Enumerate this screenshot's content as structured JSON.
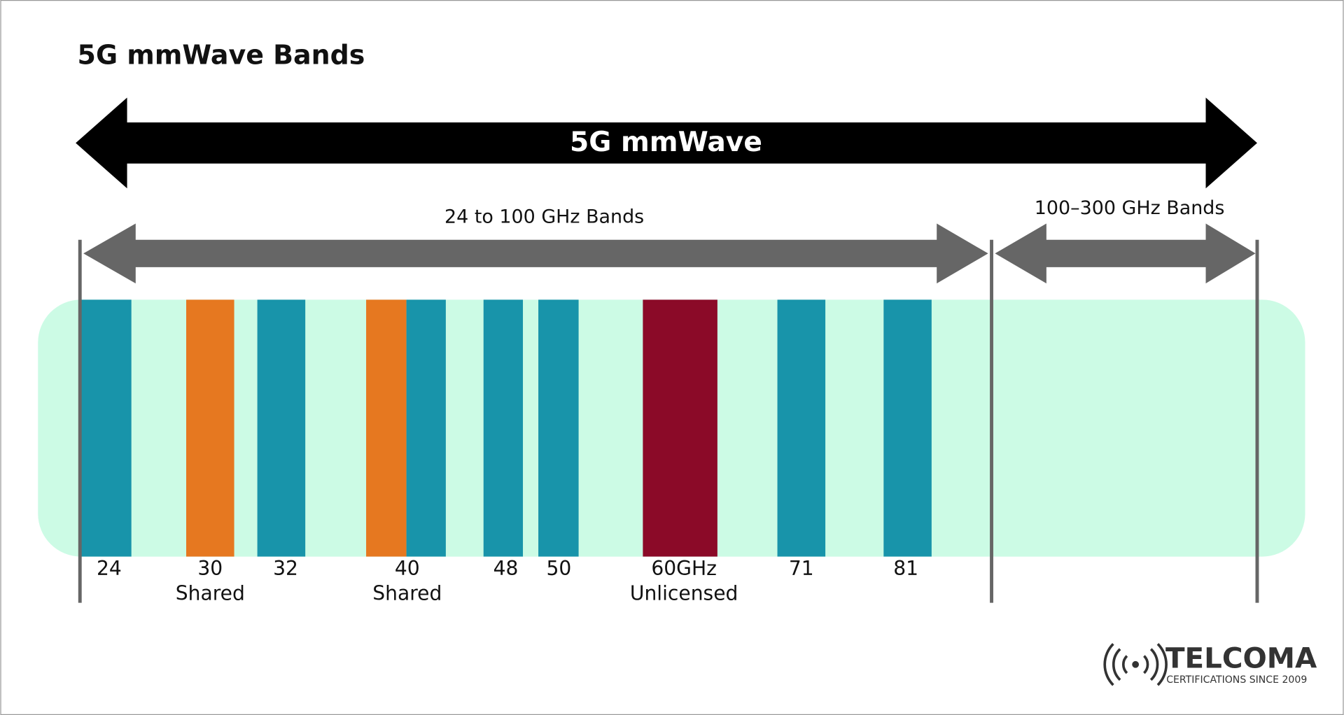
{
  "title": "5G mmWave Bands",
  "span": {
    "label": "5G mmWave"
  },
  "ranges": [
    {
      "label": "24 to 100 GHz Bands"
    },
    {
      "label": "100–300 GHz Bands"
    }
  ],
  "bands": [
    {
      "label": "24"
    },
    {
      "label": "30",
      "note": "Shared"
    },
    {
      "label": "32"
    },
    {
      "label": "40",
      "note": "Shared"
    },
    {
      "label": "48"
    },
    {
      "label": "50"
    },
    {
      "label": "60GHz",
      "note": "Unlicensed"
    },
    {
      "label": "71"
    },
    {
      "label": "81"
    }
  ],
  "logo": {
    "name": "TELCOMA",
    "tagline": "CERTIFICATIONS SINCE 2009"
  }
}
